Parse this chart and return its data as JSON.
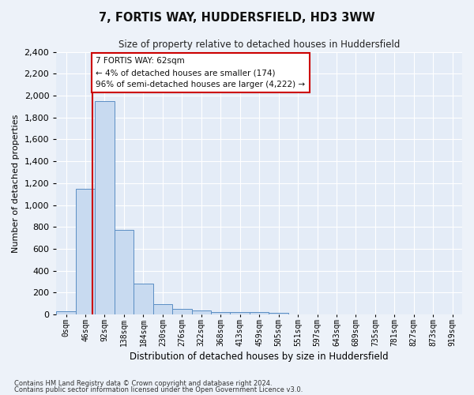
{
  "title": "7, FORTIS WAY, HUDDERSFIELD, HD3 3WW",
  "subtitle": "Size of property relative to detached houses in Huddersfield",
  "xlabel": "Distribution of detached houses by size in Huddersfield",
  "ylabel": "Number of detached properties",
  "bin_labels": [
    "0sqm",
    "46sqm",
    "92sqm",
    "138sqm",
    "184sqm",
    "230sqm",
    "276sqm",
    "322sqm",
    "368sqm",
    "413sqm",
    "459sqm",
    "505sqm",
    "551sqm",
    "597sqm",
    "643sqm",
    "689sqm",
    "735sqm",
    "781sqm",
    "827sqm",
    "873sqm",
    "919sqm"
  ],
  "bar_values": [
    30,
    1150,
    1950,
    770,
    285,
    95,
    50,
    35,
    25,
    25,
    20,
    15,
    0,
    0,
    0,
    0,
    0,
    0,
    0,
    0,
    0
  ],
  "bar_color": "#c8daf0",
  "bar_edge_color": "#5b8ec4",
  "ylim": [
    0,
    2400
  ],
  "yticks": [
    0,
    200,
    400,
    600,
    800,
    1000,
    1200,
    1400,
    1600,
    1800,
    2000,
    2200,
    2400
  ],
  "property_line_x": 1.35,
  "property_line_color": "#cc0000",
  "annotation_text": "7 FORTIS WAY: 62sqm\n← 4% of detached houses are smaller (174)\n96% of semi-detached houses are larger (4,222) →",
  "annotation_box_color": "#ffffff",
  "annotation_box_edge": "#cc0000",
  "footer_line1": "Contains HM Land Registry data © Crown copyright and database right 2024.",
  "footer_line2": "Contains public sector information licensed under the Open Government Licence v3.0.",
  "background_color": "#edf2f9",
  "plot_background": "#e4ecf7"
}
